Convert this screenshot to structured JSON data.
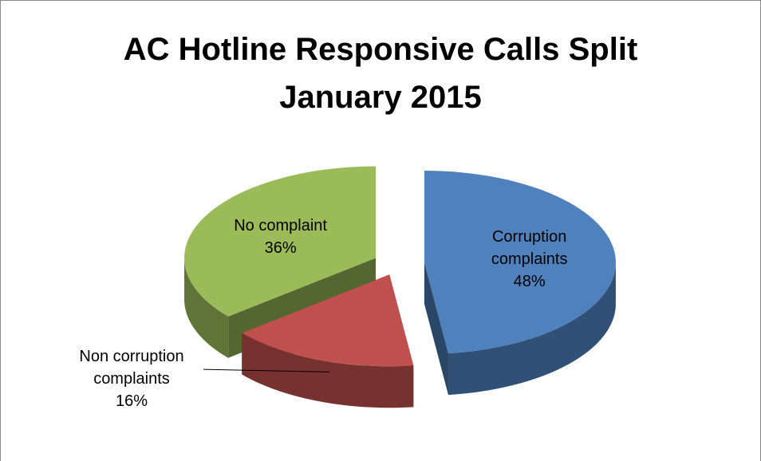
{
  "chart_data": {
    "type": "pie",
    "title": "AC Hotline Responsive Calls Split",
    "subtitle": "January 2015",
    "categories": [
      "Corruption complaints",
      "Non corruption complaints",
      "No complaint"
    ],
    "values": [
      48,
      16,
      36
    ],
    "value_labels": [
      "48%",
      "16%",
      "36%"
    ],
    "colors": [
      "#4f81bd",
      "#c0504d",
      "#9bbb59"
    ],
    "three_d": true,
    "exploded": true
  }
}
